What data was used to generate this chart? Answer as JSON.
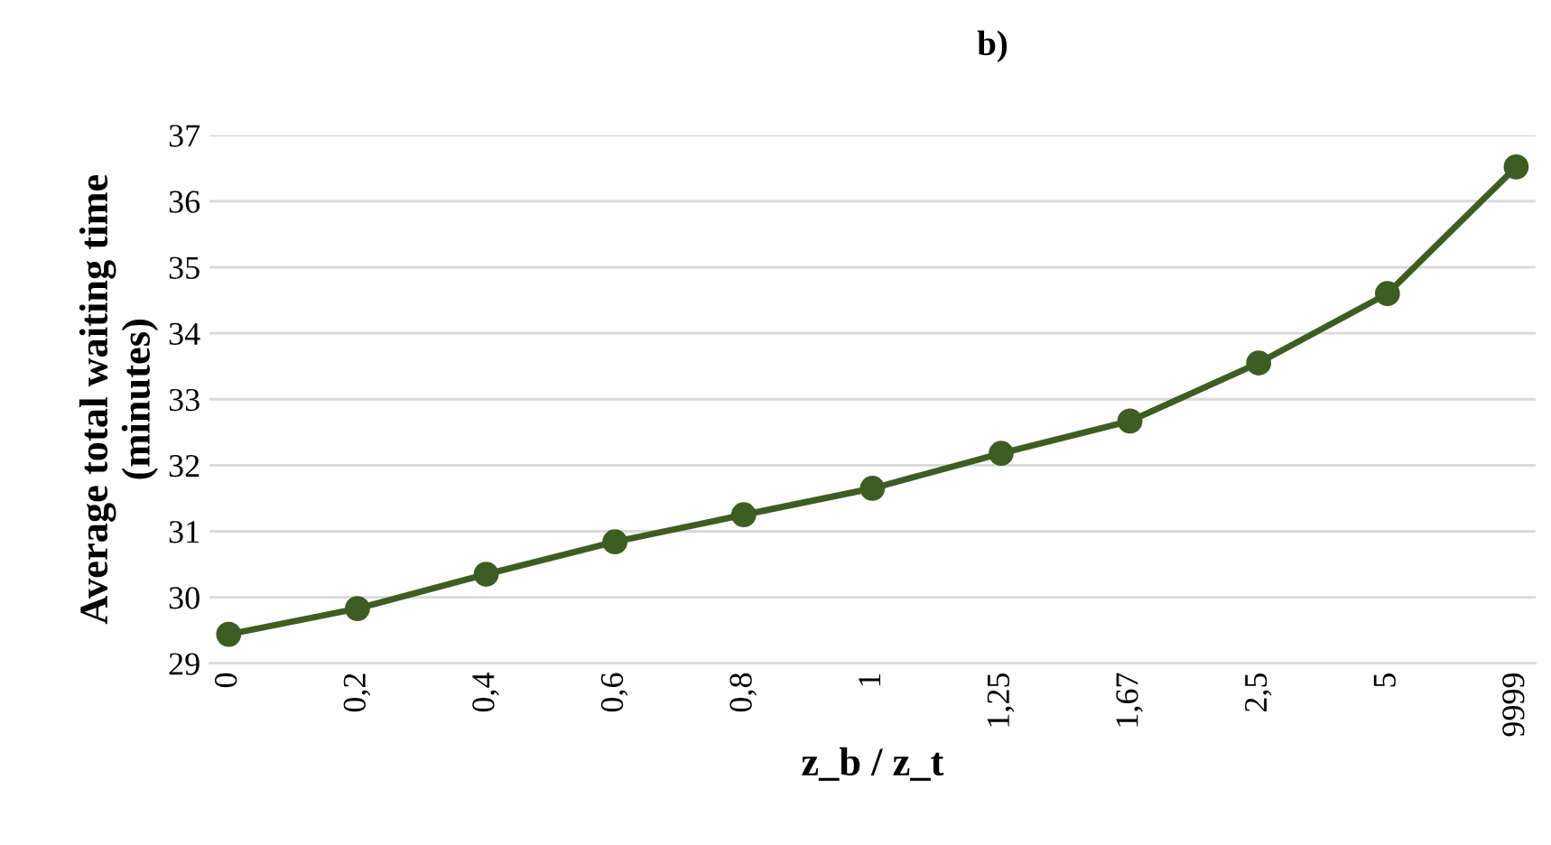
{
  "chart_data": {
    "type": "line",
    "title": "b)",
    "xlabel": "z_b / z_t",
    "ylabel": "Average total waiting time\n(minutes)",
    "categories": [
      "0",
      "0,2",
      "0,4",
      "0,6",
      "0,8",
      "1",
      "1,25",
      "1,67",
      "2,5",
      "5",
      "9999"
    ],
    "series": [
      {
        "color": "#3e5d22",
        "values": [
          29.44,
          29.83,
          30.35,
          30.84,
          31.25,
          31.65,
          32.18,
          32.67,
          33.55,
          34.6,
          36.52
        ]
      }
    ],
    "ylim": [
      29,
      37
    ],
    "yticks": [
      29,
      30,
      31,
      32,
      33,
      34,
      35,
      36,
      37
    ],
    "grid": "y",
    "marker": "circle",
    "line_style": "solid"
  }
}
